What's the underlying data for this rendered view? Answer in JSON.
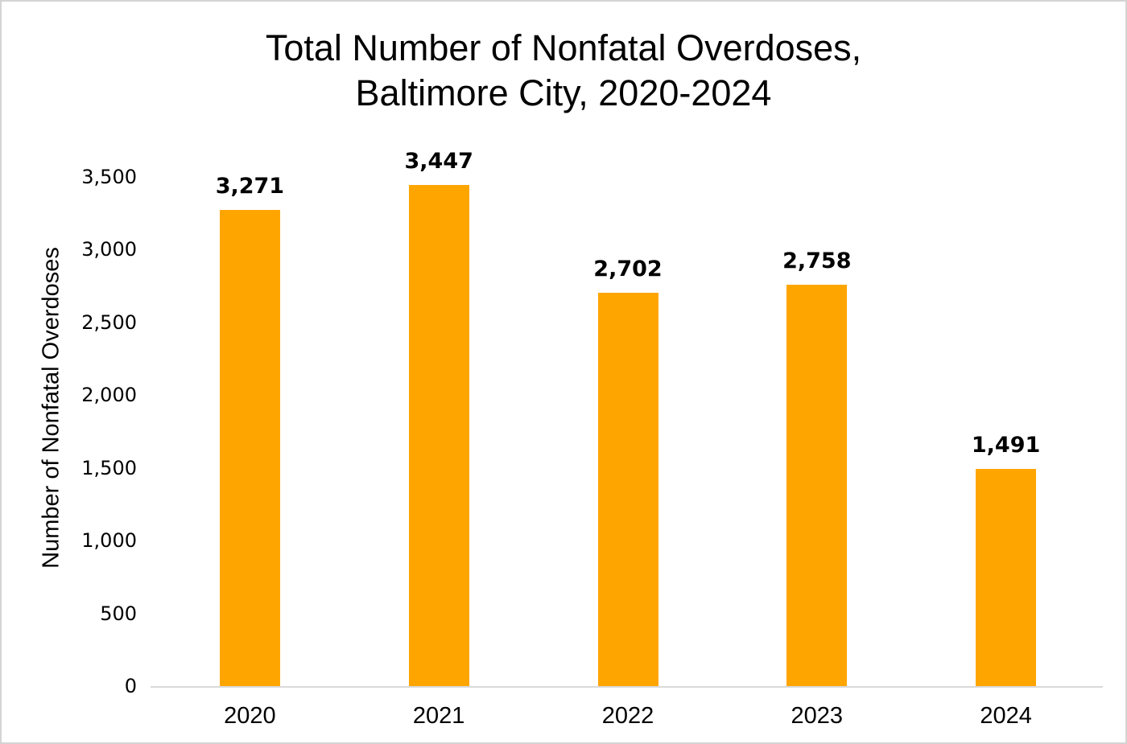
{
  "page": {
    "background_color": "#ffffff",
    "border_color": "#d4d4d4"
  },
  "chart_data": {
    "type": "bar",
    "title": "Total Number of Nonfatal Overdoses, Baltimore City, 2020-2024",
    "title_lines": [
      "Total Number of Nonfatal Overdoses,",
      "Baltimore City, 2020-2024"
    ],
    "categories": [
      "2020",
      "2021",
      "2022",
      "2023",
      "2024"
    ],
    "values": [
      3271,
      3447,
      2702,
      2758,
      1491
    ],
    "data_labels": [
      "3,271",
      "3,447",
      "2,702",
      "2,758",
      "1,491"
    ],
    "xlabel": "",
    "ylabel": "Number of Nonfatal Overdoses",
    "ylim": [
      0,
      3500
    ],
    "ytick_step": 500,
    "ytick_labels": [
      "0",
      "500",
      "1,000",
      "1,500",
      "2,000",
      "2,500",
      "3,000",
      "3,500"
    ],
    "bar_color": "#FFA500",
    "data_label_color": "#000000",
    "text_color": "#000000",
    "axis_line_color": "#d9d9d9",
    "grid": false,
    "legend": false
  }
}
